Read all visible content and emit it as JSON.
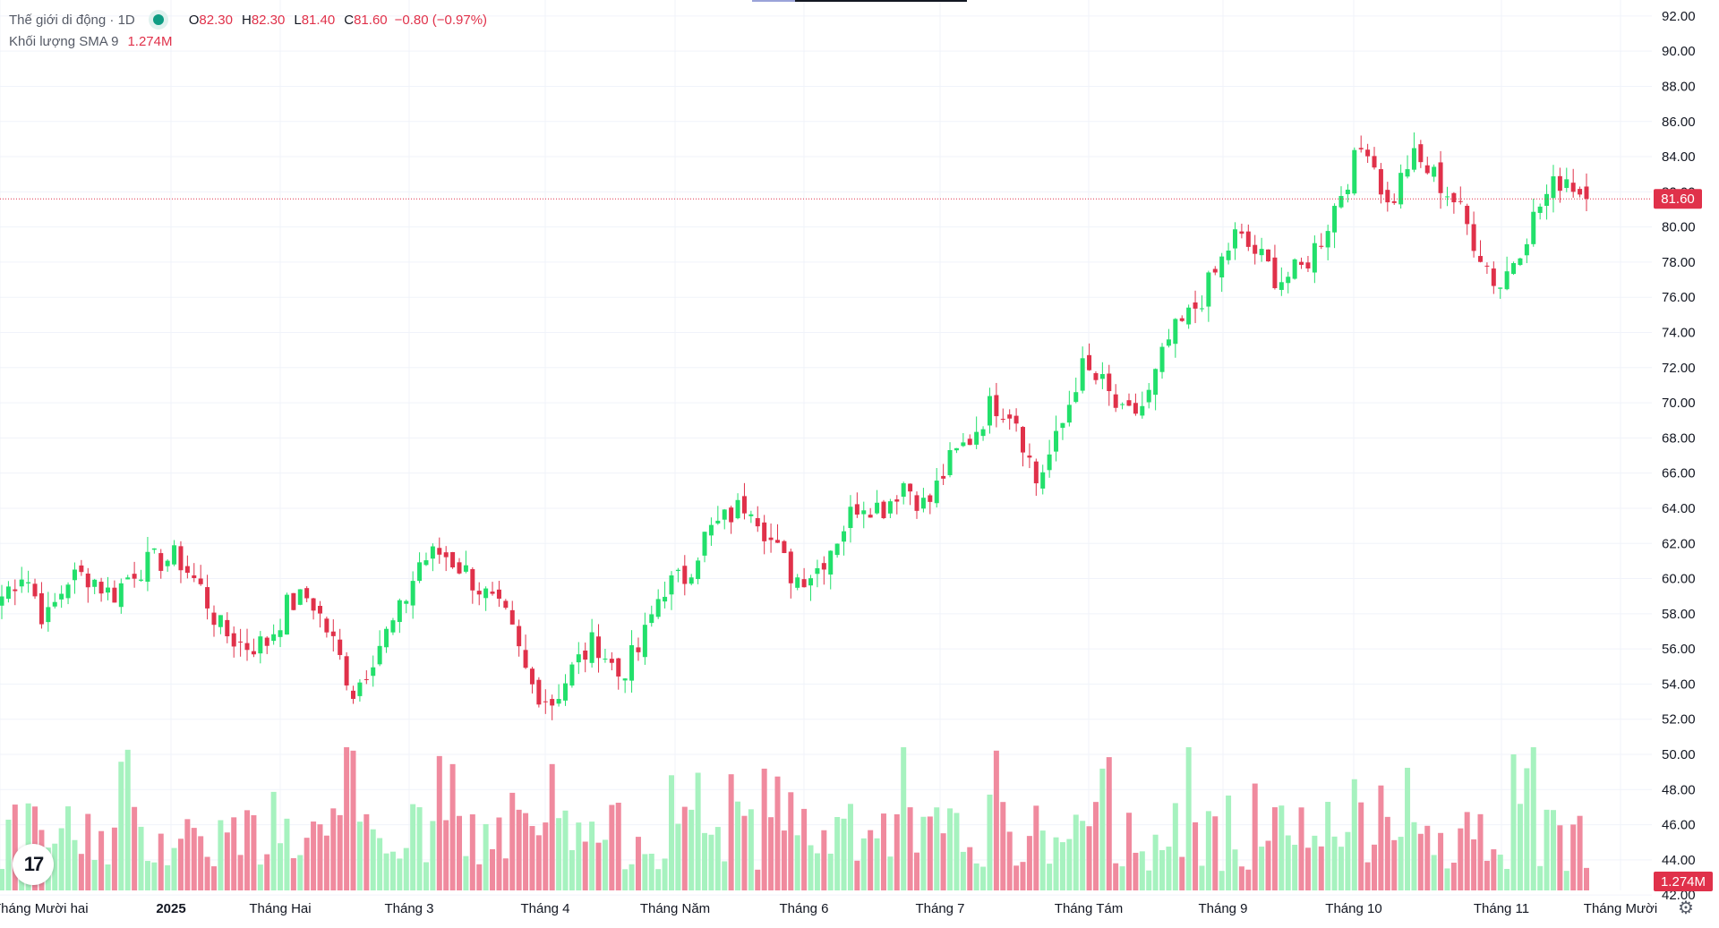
{
  "legend": {
    "symbol": "Thế giới di động · 1D",
    "o_label": "O",
    "o_value": "82.30",
    "h_label": "H",
    "h_value": "82.30",
    "l_label": "L",
    "l_value": "81.40",
    "c_label": "C",
    "c_value": "81.60",
    "change": "−0.80 (−0.97%)",
    "volume_label": "Khối lượng SMA 9",
    "volume_value": "1.274M"
  },
  "colors": {
    "up": "#22e06b",
    "down": "#e0314a",
    "up_volume": "#a6f2bf",
    "down_volume": "#f08a9e",
    "price_label": "#e0314a"
  },
  "icons": {
    "logo": "tradingview-logo-icon",
    "settings": "gear-icon"
  },
  "chart_data": {
    "type": "candlestick",
    "price_axis": {
      "ylim": [
        41.5,
        92.3
      ],
      "ticks": [
        "92.00",
        "90.00",
        "88.00",
        "86.00",
        "84.00",
        "82.00",
        "80.00",
        "78.00",
        "76.00",
        "74.00",
        "72.00",
        "70.00",
        "68.00",
        "66.00",
        "64.00",
        "62.00",
        "60.00",
        "58.00",
        "56.00",
        "54.00",
        "52.00",
        "50.00",
        "48.00",
        "46.00",
        "44.00",
        "42.00"
      ]
    },
    "last_price": "81.60",
    "last_volume": "1.274M",
    "time_axis": [
      "Tháng Mười hai",
      "2025",
      "Tháng Hai",
      "Tháng 3",
      "Tháng 4",
      "Tháng Năm",
      "Tháng 6",
      "Tháng 7",
      "Tháng Tám",
      "Tháng 9",
      "Tháng 10",
      "Tháng 11",
      "Tháng Mười"
    ],
    "time_axis_bold": [
      false,
      true,
      false,
      false,
      false,
      false,
      false,
      false,
      false,
      false,
      false,
      false,
      false
    ],
    "close_anchors": [
      59.0,
      60.5,
      57.5,
      60.0,
      60.2,
      59.0,
      60.5,
      61.0,
      61.2,
      59.5,
      57.0,
      56.2,
      56.3,
      58.5,
      59.0,
      56.5,
      53.5,
      56.0,
      57.8,
      61.0,
      61.5,
      60.5,
      59.0,
      57.5,
      54.0,
      53.0,
      55.0,
      56.5,
      54.5,
      56.0,
      59.5,
      60.0,
      62.5,
      63.5,
      64.5,
      62.0,
      60.0,
      60.5,
      62.5,
      64.5,
      64.0,
      65.5,
      64.0,
      66.5,
      68.0,
      70.0,
      69.5,
      65.5,
      68.0,
      72.0,
      71.0,
      69.0,
      70.0,
      73.5,
      75.0,
      77.0,
      79.5,
      78.5,
      77.0,
      77.5,
      79.5,
      82.5,
      85.0,
      81.0,
      84.0,
      83.0,
      81.5,
      79.0,
      76.5,
      79.0,
      81.5,
      83.0,
      81.6
    ],
    "volume_axis": {
      "ymax_millions": 2.3
    },
    "volume_scale_note": ""
  }
}
